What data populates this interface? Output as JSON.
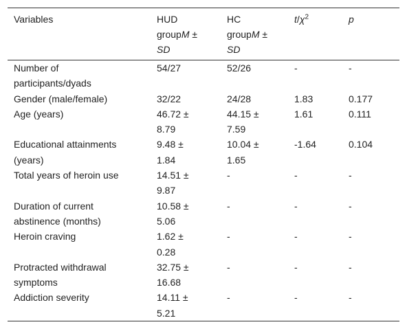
{
  "table": {
    "header": [
      [
        {
          "text": "Variables"
        }
      ],
      [
        {
          "text": "HUD group"
        },
        {
          "text": "M",
          "style": "italic"
        },
        {
          "text": " ± "
        },
        {
          "text": "SD",
          "style": "italic"
        }
      ],
      [
        {
          "text": "HC group"
        },
        {
          "text": "M",
          "style": "italic"
        },
        {
          "text": " ± "
        },
        {
          "text": "SD",
          "style": "italic"
        }
      ],
      [
        {
          "text": "t",
          "style": "italic"
        },
        {
          "text": "/"
        },
        {
          "text": "χ",
          "style": "italic"
        },
        {
          "text": "2",
          "style": "sup"
        }
      ],
      [
        {
          "text": "p",
          "style": "italic"
        }
      ]
    ],
    "rows": [
      [
        "Number of participants/dyads",
        "54/27",
        "52/26",
        "-",
        "-"
      ],
      [
        "Gender (male/female)",
        "32/22",
        "24/28",
        "1.83",
        "0.177"
      ],
      [
        "Age (years)",
        "46.72 ± 8.79",
        "44.15 ± 7.59",
        "1.61",
        "0.111"
      ],
      [
        "Educational attainments (years)",
        "9.48 ± 1.84",
        "10.04 ± 1.65",
        "-1.64",
        "0.104"
      ],
      [
        "Total years of heroin use",
        "14.51 ± 9.87",
        "-",
        "-",
        "-"
      ],
      [
        "Duration of current abstinence (months)",
        "10.58 ± 5.06",
        "-",
        "-",
        "-"
      ],
      [
        "Heroin craving",
        "1.62 ± 0.28",
        "-",
        "-",
        "-"
      ],
      [
        "Protracted withdrawal symptoms",
        "32.75 ± 16.68",
        "-",
        "-",
        "-"
      ],
      [
        "Addiction severity",
        "14.11 ± 5.21",
        "-",
        "-",
        "-"
      ]
    ]
  }
}
